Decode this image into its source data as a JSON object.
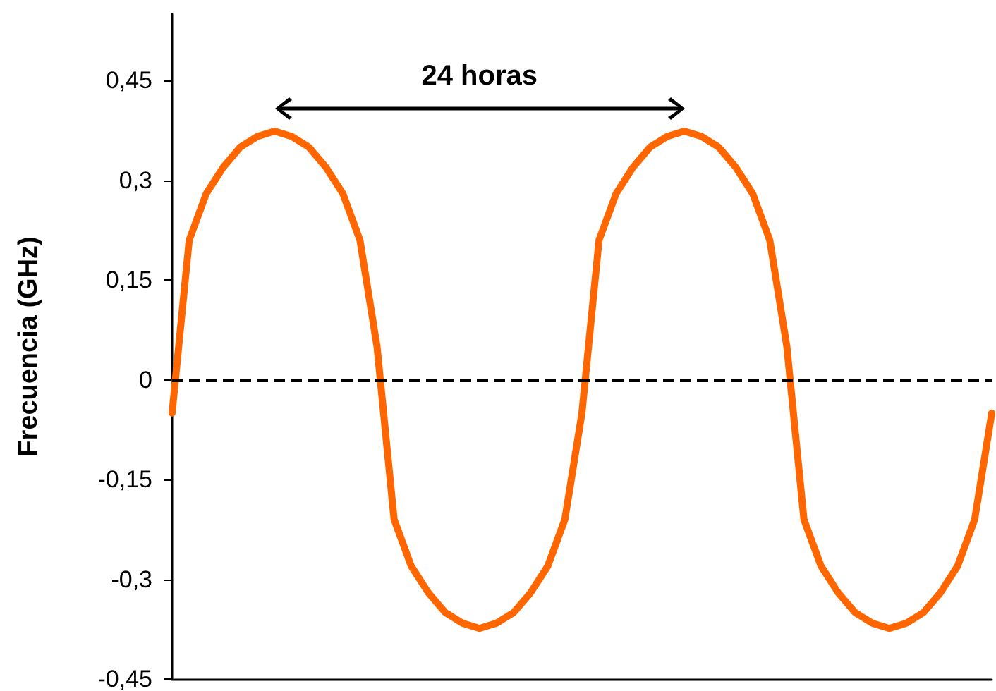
{
  "chart_data": {
    "type": "line",
    "ylabel": "Frecuencia (GHz)",
    "annotations": [
      "24 horas"
    ],
    "categories": [
      null,
      null,
      null,
      null,
      null,
      null,
      null,
      null,
      null,
      null,
      null,
      null,
      null,
      null,
      null,
      null,
      null,
      null,
      null,
      null,
      null,
      null,
      null,
      null,
      null,
      null,
      null,
      null,
      null,
      null,
      null,
      null,
      null,
      null,
      null,
      null,
      null,
      null,
      null,
      null,
      null,
      null,
      null,
      null,
      null,
      null,
      null,
      null,
      null
    ],
    "series": [
      {
        "color": "#ff6600",
        "values": [
          -0.05,
          0.21,
          0.28,
          0.32,
          0.35,
          0.366,
          0.374,
          0.366,
          0.35,
          0.32,
          0.28,
          0.21,
          0.05,
          -0.21,
          -0.28,
          -0.32,
          -0.35,
          -0.366,
          -0.374,
          -0.366,
          -0.35,
          -0.32,
          -0.28,
          -0.21,
          -0.05,
          0.21,
          0.28,
          0.32,
          0.35,
          0.366,
          0.374,
          0.366,
          0.35,
          0.32,
          0.28,
          0.21,
          0.05,
          -0.21,
          -0.28,
          -0.32,
          -0.35,
          -0.366,
          -0.374,
          -0.366,
          -0.35,
          -0.32,
          -0.28,
          -0.21,
          -0.05
        ]
      }
    ],
    "ylim": [
      -0.45,
      0.55
    ],
    "yticks": [
      {
        "value": -0.45,
        "label": "-0,45"
      },
      {
        "value": -0.3,
        "label": "-0,3"
      },
      {
        "value": -0.15,
        "label": "-0,15"
      },
      0,
      {
        "value": 0.15,
        "label": "0,15"
      },
      {
        "value": 0.3,
        "label": "0,3"
      },
      {
        "value": 0.45,
        "label": "0,45"
      }
    ],
    "ref_lines": [
      {
        "axis": "y",
        "value": 0,
        "color": "#000000",
        "line_style": "dashed"
      }
    ],
    "marker": "none",
    "grid": false
  }
}
